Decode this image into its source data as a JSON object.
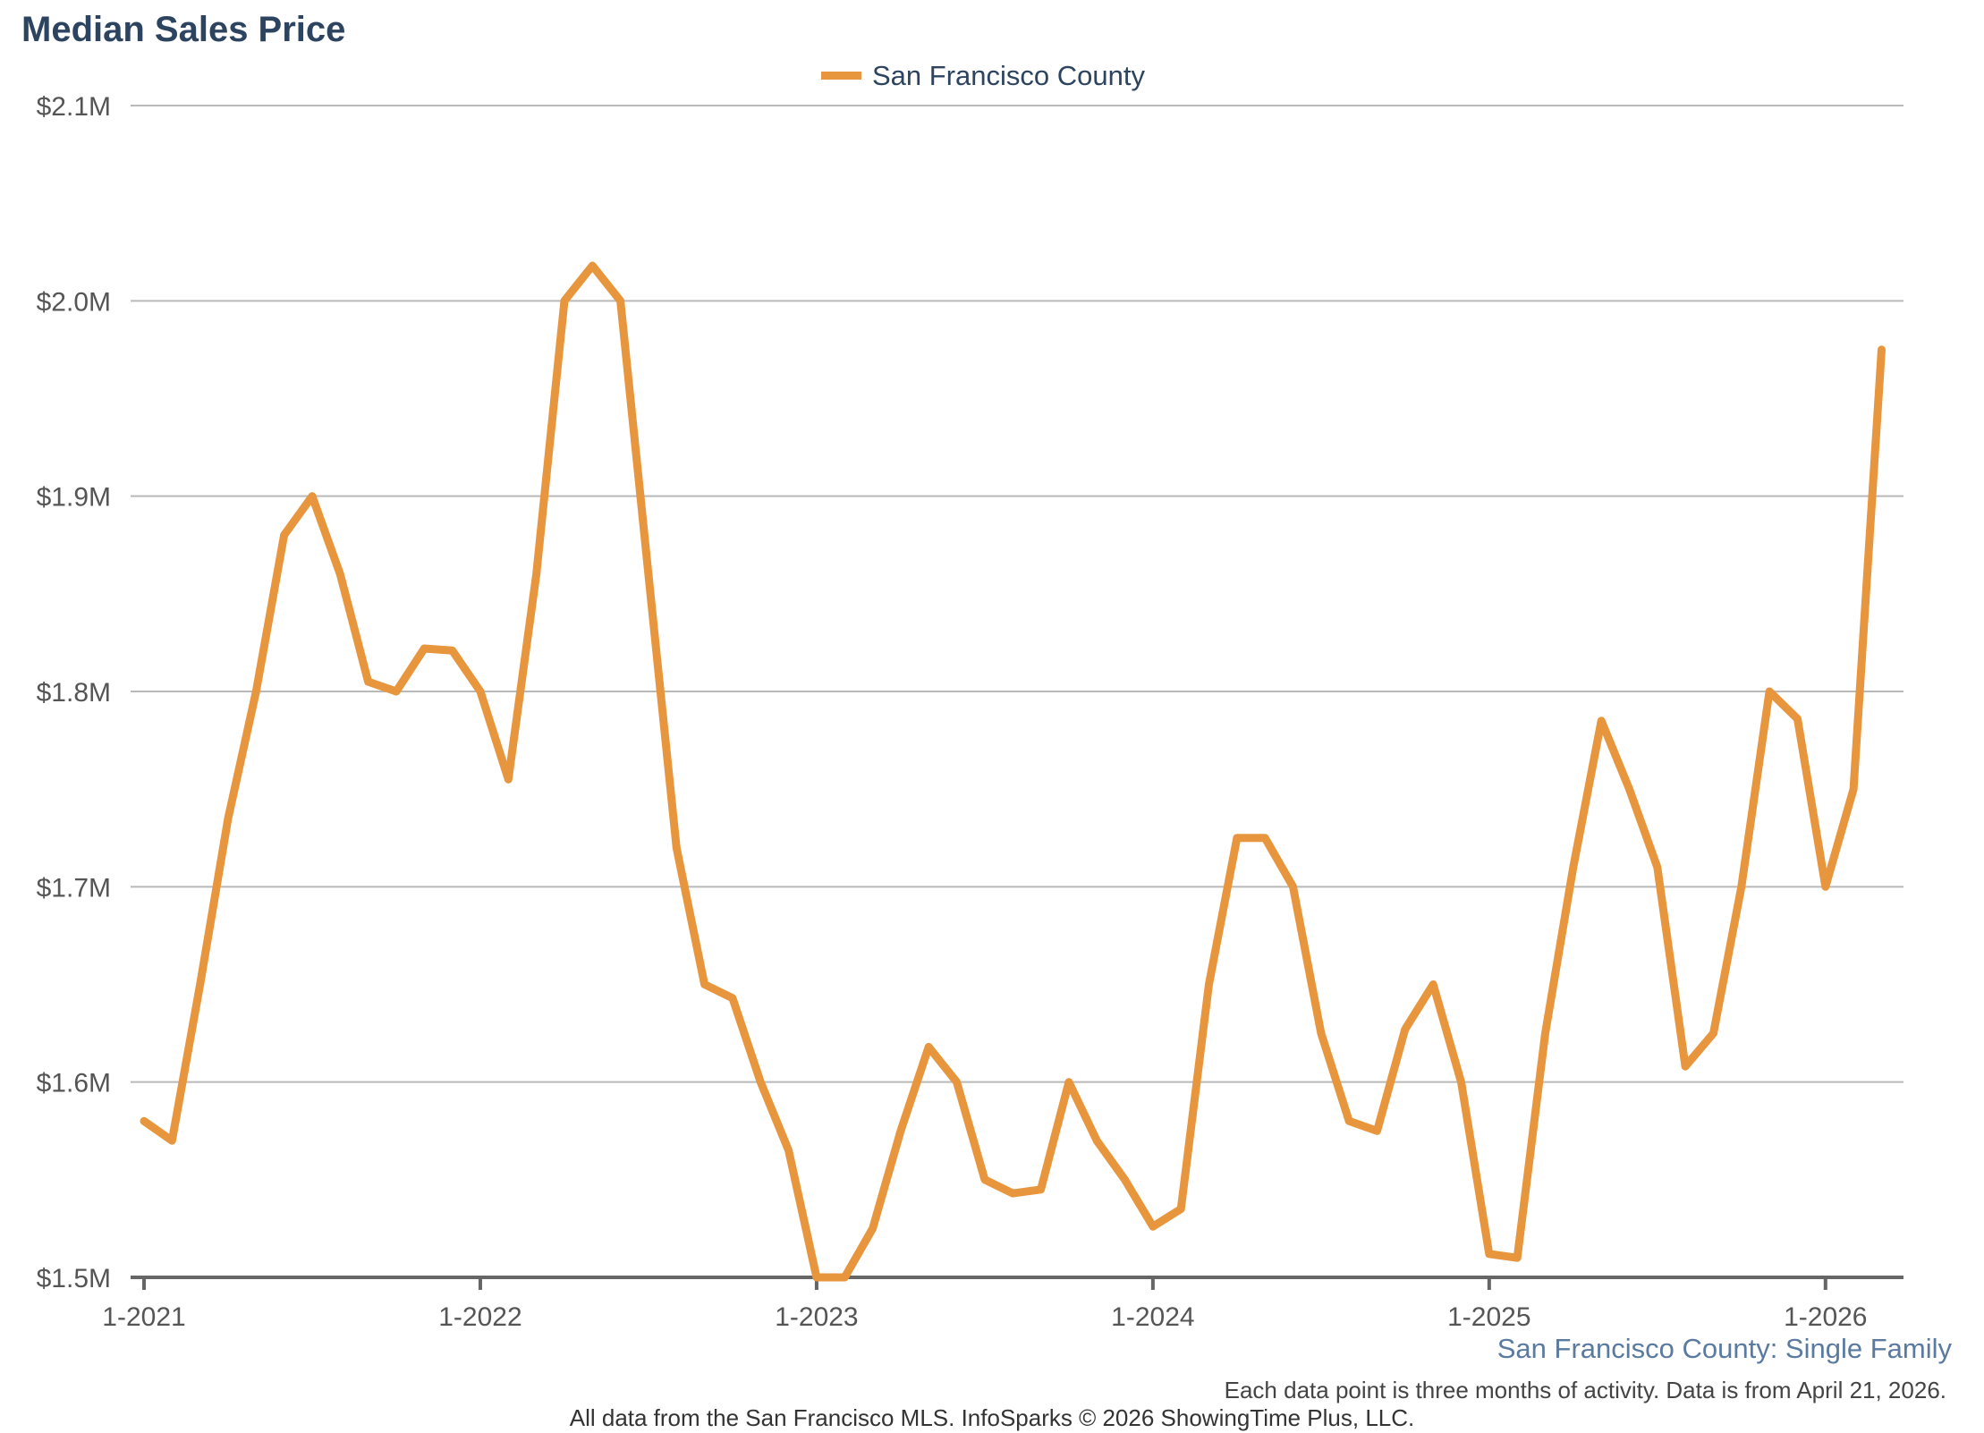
{
  "chart_data": {
    "type": "line",
    "title": "Median Sales Price",
    "subtitle": "San Francisco County: Single Family",
    "note": "Each data point is three months of activity. Data is from April 21, 2026.",
    "credit": "All data from the San Francisco MLS. InfoSparks © 2026 ShowingTime Plus, LLC.",
    "legend_position": "top-center",
    "grid": true,
    "x_tick_labels": [
      "1-2021",
      "1-2022",
      "1-2023",
      "1-2024",
      "1-2025",
      "1-2026"
    ],
    "y_tick_labels": [
      "$1.5M",
      "$1.6M",
      "$1.7M",
      "$1.8M",
      "$1.9M",
      "$2.0M",
      "$2.1M"
    ],
    "y_ticks": [
      1.5,
      1.6,
      1.7,
      1.8,
      1.9,
      2.0,
      2.1
    ],
    "ylim": [
      1.5,
      2.1
    ],
    "x_start": "2021-01",
    "x_step_months": 1,
    "series": [
      {
        "name": "San Francisco County",
        "color": "#e8963d",
        "values": [
          1.58,
          1.57,
          1.65,
          1.735,
          1.8,
          1.88,
          1.9,
          1.86,
          1.805,
          1.8,
          1.822,
          1.821,
          1.8,
          1.755,
          1.86,
          2.0,
          2.018,
          2.0,
          1.86,
          1.72,
          1.65,
          1.643,
          1.6,
          1.565,
          1.5,
          1.5,
          1.525,
          1.575,
          1.618,
          1.6,
          1.55,
          1.543,
          1.545,
          1.6,
          1.57,
          1.55,
          1.526,
          1.535,
          1.65,
          1.725,
          1.725,
          1.7,
          1.625,
          1.58,
          1.575,
          1.627,
          1.65,
          1.6,
          1.512,
          1.51,
          1.625,
          1.71,
          1.785,
          1.75,
          1.71,
          1.608,
          1.625,
          1.7,
          1.8,
          1.786,
          1.7,
          1.75,
          1.975
        ]
      }
    ]
  }
}
